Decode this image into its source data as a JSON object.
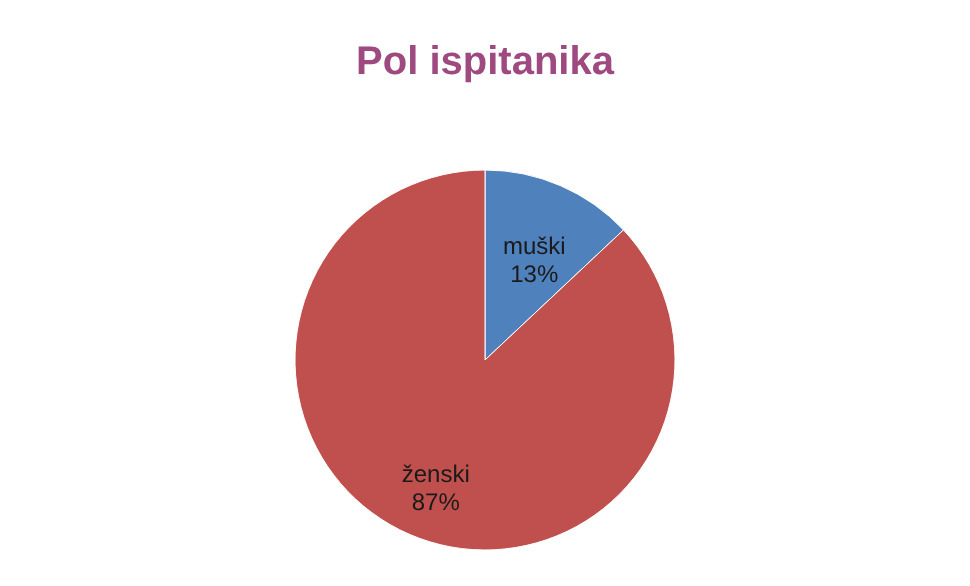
{
  "chart_data": {
    "type": "pie",
    "title": "Pol ispitanika",
    "categories": [
      "muški",
      "ženski"
    ],
    "values": [
      13,
      87
    ],
    "colors": [
      "#4f81bd",
      "#c0504d"
    ],
    "value_labels": [
      "13%",
      "87%"
    ],
    "legend": false
  }
}
